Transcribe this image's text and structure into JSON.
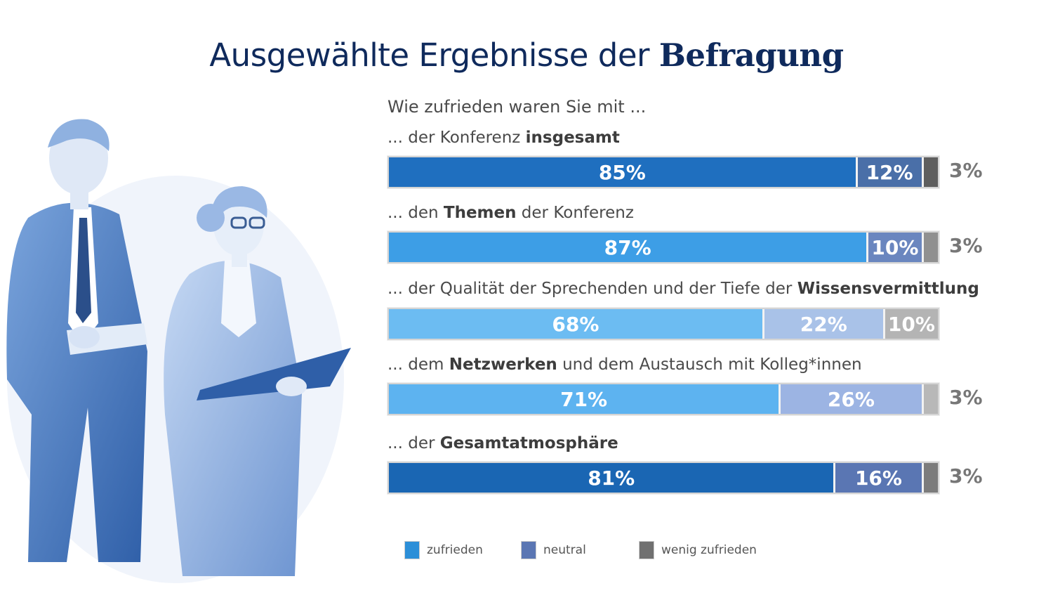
{
  "title": {
    "regular": "Ausgewählte Ergebnisse der ",
    "bold": "Befragung"
  },
  "subtitle": "Wie zufrieden waren Sie mit ...",
  "questions": [
    {
      "pre": "... der Konferenz ",
      "bold": "insgesamt",
      "post": ""
    },
    {
      "pre": "... den ",
      "bold": "Themen",
      "post": " der Konferenz"
    },
    {
      "pre": "... der Qualität der Sprechenden und der Tiefe der ",
      "bold": "Wissensvermittlung",
      "post": ""
    },
    {
      "pre": "... dem ",
      "bold": "Netzwerken",
      "post": " und dem Austausch mit Kolleg*innen"
    },
    {
      "pre": "... der ",
      "bold": "Gesamtatmosphäre",
      "post": ""
    }
  ],
  "chart_data": {
    "type": "bar",
    "orientation": "horizontal-stacked",
    "categories": [
      "... der Konferenz insgesamt",
      "... den Themen der Konferenz",
      "... der Qualität der Sprechenden und der Tiefe der Wissensvermittlung",
      "... dem Netzwerken und dem Austausch mit Kolleg*innen",
      "... der Gesamtatmosphäre"
    ],
    "series": [
      {
        "name": "zufrieden",
        "values": [
          85,
          87,
          68,
          71,
          81
        ]
      },
      {
        "name": "neutral",
        "values": [
          12,
          10,
          22,
          26,
          16
        ]
      },
      {
        "name": "wenig zufrieden",
        "values": [
          3,
          3,
          10,
          3,
          3
        ]
      }
    ],
    "labels": [
      [
        "85%",
        "12%",
        "3%"
      ],
      [
        "87%",
        "10%",
        "3%"
      ],
      [
        "68%",
        "22%",
        "10%"
      ],
      [
        "71%",
        "26%",
        "3%"
      ],
      [
        "81%",
        "16%",
        "3%"
      ]
    ],
    "bar_colors": [
      [
        "#1f6fbf",
        "#4a6fa8",
        "#5f5f5f"
      ],
      [
        "#3d9ee6",
        "#6a86bf",
        "#909090"
      ],
      [
        "#6cbcf2",
        "#a9c2e8",
        "#b4b4b4"
      ],
      [
        "#5db3f0",
        "#9cb4e3",
        "#b8b8b8"
      ],
      [
        "#1a66b3",
        "#5a76b3",
        "#7c7c7c"
      ]
    ],
    "label_outside": [
      true,
      true,
      false,
      true,
      true
    ],
    "xlim": [
      0,
      100
    ],
    "legend_position": "bottom",
    "legend_colors": [
      "#2c8fd8",
      "#5a76b3",
      "#707070"
    ],
    "grid": false
  },
  "legend": [
    "zufrieden",
    "neutral",
    "wenig zufrieden"
  ]
}
